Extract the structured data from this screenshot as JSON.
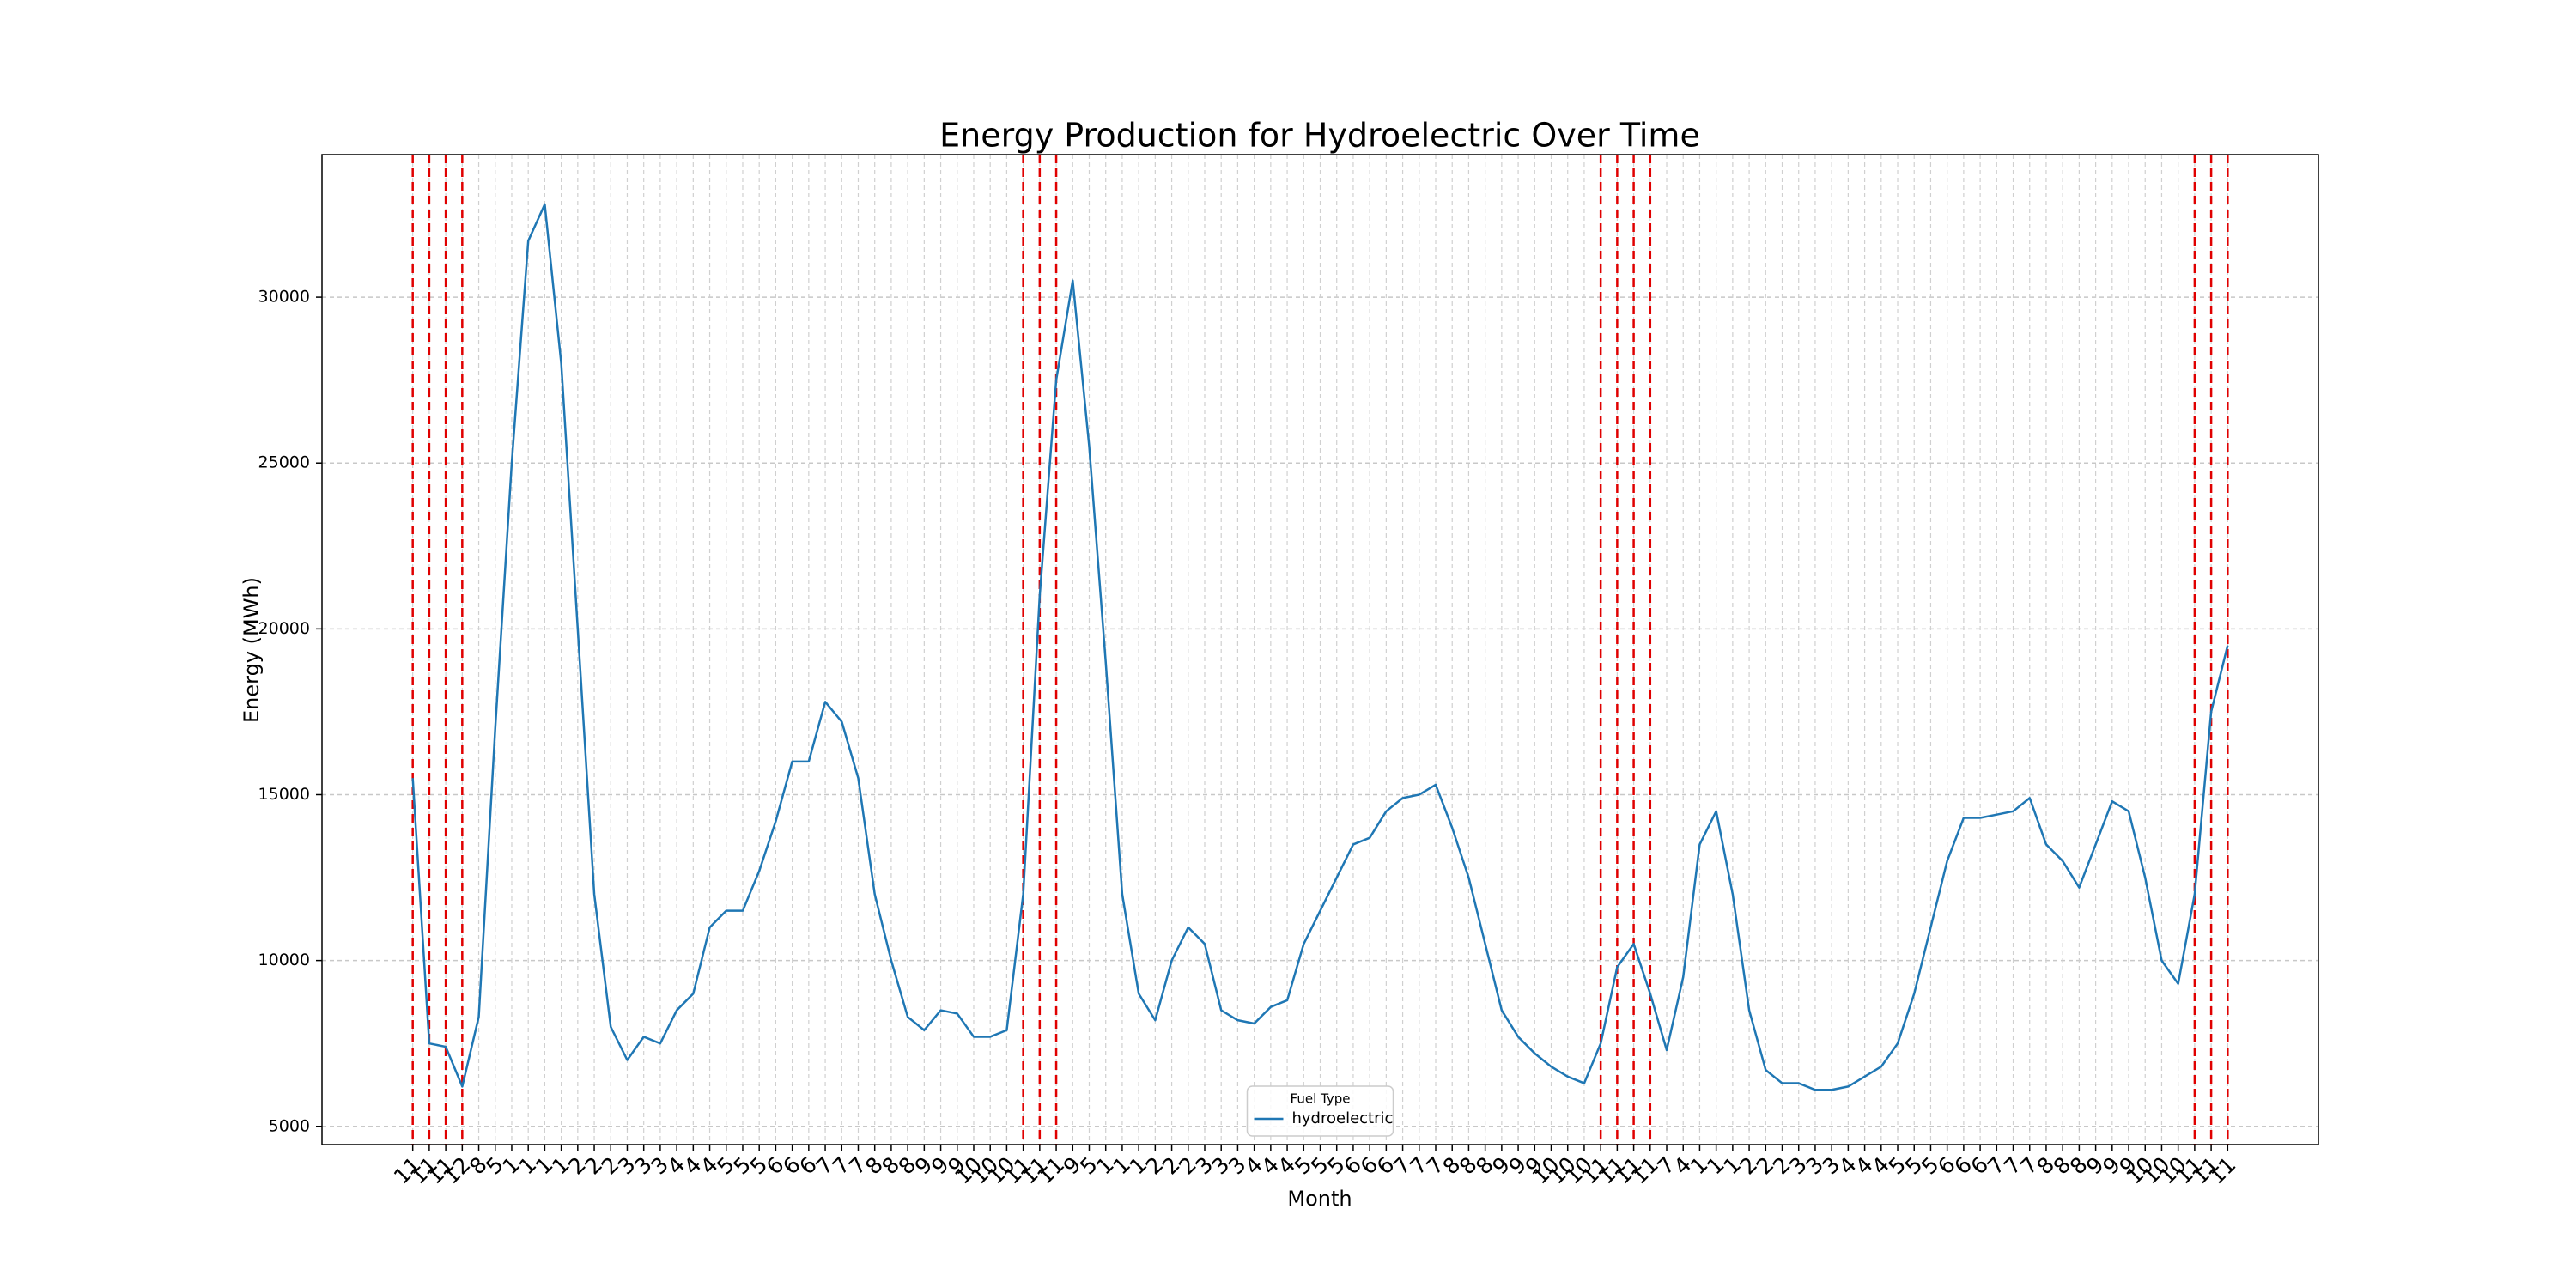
{
  "chart_data": {
    "type": "line",
    "title": "Energy Production for Hydroelectric Over Time",
    "x_label": "Month",
    "y_label": "Energy (MWh)",
    "categories": [
      "11",
      "11",
      "11",
      "12",
      "8",
      "5",
      "1",
      "1",
      "1",
      "1",
      "2",
      "2",
      "2",
      "3",
      "3",
      "3",
      "4",
      "4",
      "4",
      "5",
      "5",
      "5",
      "6",
      "6",
      "6",
      "7",
      "7",
      "7",
      "8",
      "8",
      "8",
      "9",
      "9",
      "9",
      "10",
      "10",
      "10",
      "11",
      "11",
      "11",
      "9",
      "5",
      "1",
      "1",
      "1",
      "2",
      "2",
      "2",
      "3",
      "3",
      "3",
      "4",
      "4",
      "4",
      "5",
      "5",
      "5",
      "6",
      "6",
      "6",
      "7",
      "7",
      "7",
      "8",
      "8",
      "8",
      "9",
      "9",
      "9",
      "10",
      "10",
      "10",
      "11",
      "11",
      "11",
      "11",
      "7",
      "4",
      "1",
      "1",
      "1",
      "2",
      "2",
      "2",
      "3",
      "3",
      "3",
      "4",
      "4",
      "4",
      "5",
      "5",
      "5",
      "6",
      "6",
      "6",
      "7",
      "7",
      "7",
      "8",
      "8",
      "8",
      "9",
      "9",
      "9",
      "10",
      "10",
      "10",
      "11",
      "11",
      "11"
    ],
    "series": [
      {
        "name": "hydroelectric",
        "color": "#1f77b4",
        "values": [
          15500,
          7500,
          7400,
          6200,
          8300,
          17000,
          25000,
          31700,
          32800,
          28000,
          20000,
          12000,
          8000,
          7000,
          7700,
          7500,
          8500,
          9000,
          11000,
          11500,
          11500,
          12700,
          14200,
          16000,
          16000,
          17800,
          17200,
          15500,
          12000,
          10000,
          8300,
          7900,
          8500,
          8400,
          7700,
          7700,
          7900,
          12000,
          21000,
          27500,
          30500,
          25500,
          19000,
          12000,
          9000,
          8200,
          10000,
          11000,
          10500,
          8500,
          8200,
          8100,
          8600,
          8800,
          10500,
          11500,
          12500,
          13500,
          13700,
          14500,
          14900,
          15000,
          15300,
          14000,
          12500,
          10500,
          8500,
          7700,
          7200,
          6800,
          6500,
          6300,
          7500,
          9800,
          10500,
          9000,
          7300,
          9500,
          13500,
          14500,
          12000,
          8500,
          6700,
          6300,
          6300,
          6100,
          6100,
          6200,
          6500,
          6800,
          7500,
          9000,
          11000,
          13000,
          14300,
          14300,
          14400,
          14500,
          14900,
          13500,
          13000,
          12200,
          13500,
          14800,
          14500,
          12500,
          10000,
          9300,
          12000,
          17500,
          19500
        ]
      }
    ],
    "vlines": [
      0,
      1,
      2,
      3,
      37,
      38,
      39,
      72,
      73,
      74,
      75,
      108,
      109,
      110
    ],
    "vline_color": "#e00000",
    "ylim": [
      4450,
      34300
    ],
    "yticks": [
      5000,
      10000,
      15000,
      20000,
      25000,
      30000
    ],
    "grid": true,
    "legend_title": "Fuel Type",
    "legend_position": "lower center"
  }
}
